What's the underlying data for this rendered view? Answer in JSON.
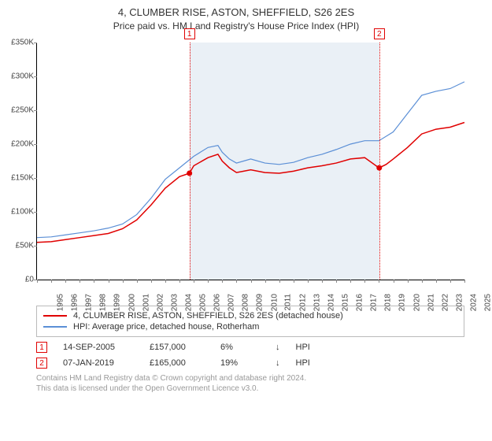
{
  "title": "4, CLUMBER RISE, ASTON, SHEFFIELD, S26 2ES",
  "subtitle": "Price paid vs. HM Land Registry's House Price Index (HPI)",
  "chart": {
    "type": "line",
    "background_color": "#ffffff",
    "shaded_band_color": "#eaf0f6",
    "shaded_band_x": [
      2005.7,
      2019.02
    ],
    "x": {
      "min": 1995,
      "max": 2025,
      "ticks": [
        1995,
        1996,
        1997,
        1998,
        1999,
        2000,
        2001,
        2002,
        2003,
        2004,
        2005,
        2006,
        2007,
        2008,
        2009,
        2010,
        2011,
        2012,
        2013,
        2014,
        2015,
        2016,
        2017,
        2018,
        2019,
        2020,
        2021,
        2022,
        2023,
        2024,
        2025
      ]
    },
    "y": {
      "min": 0,
      "max": 350000,
      "tick_step": 50000,
      "labels": [
        "£0",
        "£50K",
        "£100K",
        "£150K",
        "£200K",
        "£250K",
        "£300K",
        "£350K"
      ]
    },
    "series": [
      {
        "id": "price_paid",
        "label": "4, CLUMBER RISE, ASTON, SHEFFIELD, S26 2ES (detached house)",
        "color": "#e00000",
        "line_width": 1.5,
        "points": [
          [
            1995,
            55000
          ],
          [
            1996,
            56000
          ],
          [
            1997,
            59000
          ],
          [
            1998,
            62000
          ],
          [
            1999,
            65000
          ],
          [
            2000,
            68000
          ],
          [
            2001,
            75000
          ],
          [
            2002,
            88000
          ],
          [
            2003,
            110000
          ],
          [
            2004,
            135000
          ],
          [
            2005,
            152000
          ],
          [
            2005.7,
            157000
          ],
          [
            2006,
            168000
          ],
          [
            2007,
            180000
          ],
          [
            2007.7,
            185000
          ],
          [
            2008,
            175000
          ],
          [
            2008.5,
            165000
          ],
          [
            2009,
            158000
          ],
          [
            2009.5,
            160000
          ],
          [
            2010,
            162000
          ],
          [
            2011,
            158000
          ],
          [
            2012,
            157000
          ],
          [
            2013,
            160000
          ],
          [
            2014,
            165000
          ],
          [
            2015,
            168000
          ],
          [
            2016,
            172000
          ],
          [
            2017,
            178000
          ],
          [
            2018,
            180000
          ],
          [
            2019,
            165000
          ],
          [
            2019.02,
            165000
          ],
          [
            2019.5,
            170000
          ],
          [
            2020,
            178000
          ],
          [
            2021,
            195000
          ],
          [
            2022,
            215000
          ],
          [
            2023,
            222000
          ],
          [
            2024,
            225000
          ],
          [
            2025,
            232000
          ]
        ],
        "sale_points": [
          {
            "x": 2005.7,
            "y": 157000,
            "fill": "#e00000"
          },
          {
            "x": 2019.02,
            "y": 165000,
            "fill": "#e00000"
          }
        ]
      },
      {
        "id": "hpi",
        "label": "HPI: Average price, detached house, Rotherham",
        "color": "#5b8fd6",
        "line_width": 1.2,
        "points": [
          [
            1995,
            62000
          ],
          [
            1996,
            63000
          ],
          [
            1997,
            66000
          ],
          [
            1998,
            69000
          ],
          [
            1999,
            72000
          ],
          [
            2000,
            76000
          ],
          [
            2001,
            82000
          ],
          [
            2002,
            96000
          ],
          [
            2003,
            120000
          ],
          [
            2004,
            148000
          ],
          [
            2005,
            165000
          ],
          [
            2006,
            182000
          ],
          [
            2007,
            195000
          ],
          [
            2007.7,
            198000
          ],
          [
            2008,
            188000
          ],
          [
            2008.5,
            178000
          ],
          [
            2009,
            172000
          ],
          [
            2009.5,
            175000
          ],
          [
            2010,
            178000
          ],
          [
            2011,
            172000
          ],
          [
            2012,
            170000
          ],
          [
            2013,
            173000
          ],
          [
            2014,
            180000
          ],
          [
            2015,
            185000
          ],
          [
            2016,
            192000
          ],
          [
            2017,
            200000
          ],
          [
            2018,
            205000
          ],
          [
            2019,
            205000
          ],
          [
            2020,
            218000
          ],
          [
            2021,
            245000
          ],
          [
            2022,
            272000
          ],
          [
            2023,
            278000
          ],
          [
            2024,
            282000
          ],
          [
            2025,
            292000
          ]
        ]
      }
    ],
    "markers": [
      {
        "id": "1",
        "x": 2005.7,
        "box_y_offset": -18
      },
      {
        "id": "2",
        "x": 2019.02,
        "box_y_offset": -18
      }
    ]
  },
  "legend": [
    {
      "color": "#e00000",
      "text": "4, CLUMBER RISE, ASTON, SHEFFIELD, S26 2ES (detached house)"
    },
    {
      "color": "#5b8fd6",
      "text": "HPI: Average price, detached house, Rotherham"
    }
  ],
  "sales": [
    {
      "id": "1",
      "date": "14-SEP-2005",
      "price": "£157,000",
      "delta": "6%",
      "arrow": "↓",
      "ref": "HPI"
    },
    {
      "id": "2",
      "date": "07-JAN-2019",
      "price": "£165,000",
      "delta": "19%",
      "arrow": "↓",
      "ref": "HPI"
    }
  ],
  "footer": {
    "line1": "Contains HM Land Registry data © Crown copyright and database right 2024.",
    "line2": "This data is licensed under the Open Government Licence v3.0."
  }
}
